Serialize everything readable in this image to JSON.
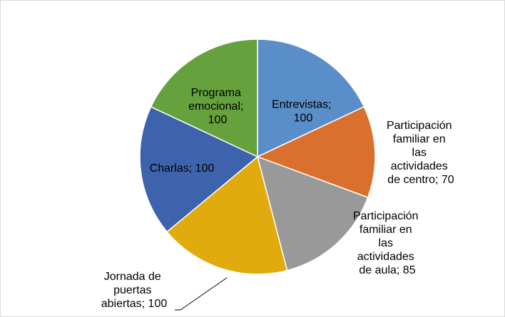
{
  "chart_data": {
    "type": "pie",
    "values": [
      100,
      70,
      85,
      100,
      100,
      100
    ],
    "value_labels": [
      "Entrevistas; 100",
      "Participación familiar en las actividades de centro; 70",
      "Participación familiar en las actividades de aula; 85",
      "Jornada de puertas abiertas; 100",
      "Charlas; 100",
      "Programa emocional; 100"
    ],
    "colors": [
      "#5a8ec8",
      "#d9702e",
      "#999999",
      "#e2ab0d",
      "#3d63ad",
      "#65a23d"
    ]
  }
}
